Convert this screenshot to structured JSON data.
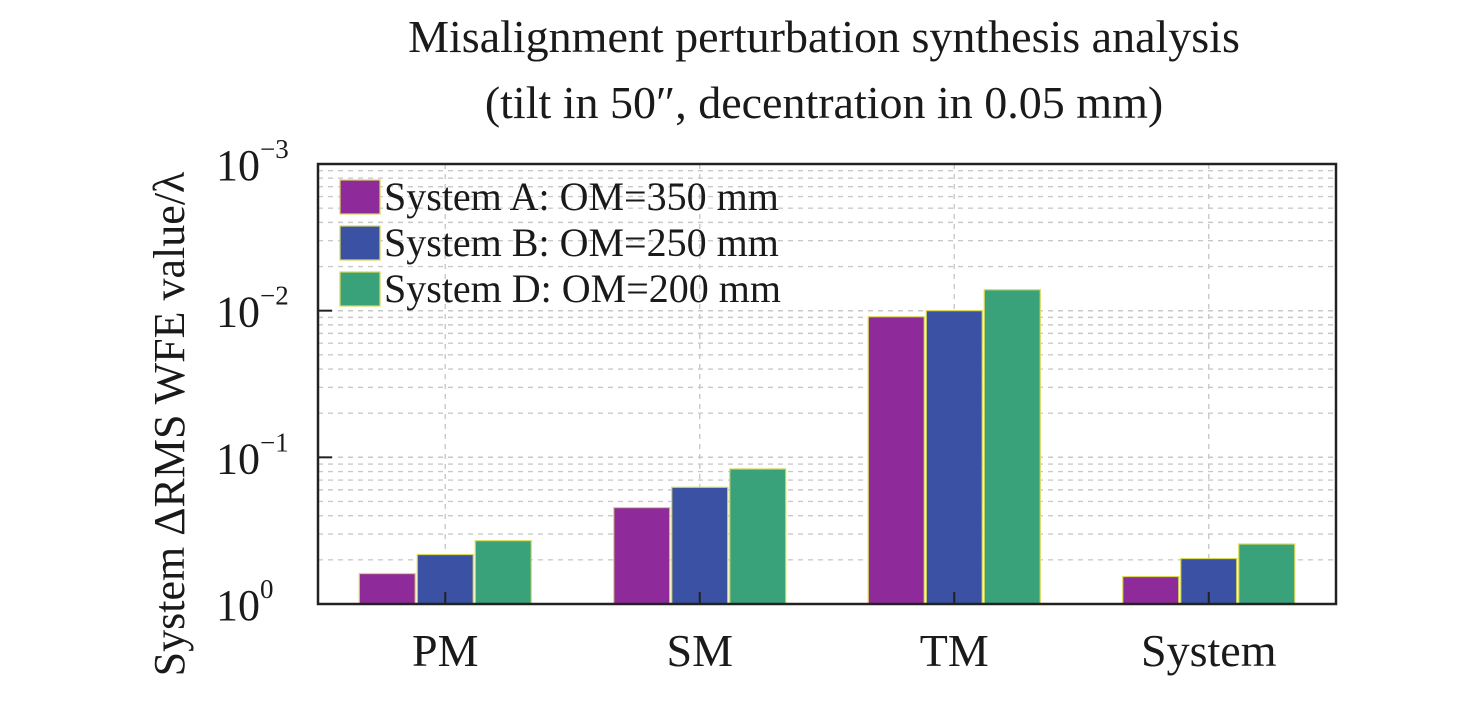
{
  "chart_data": {
    "type": "bar",
    "title_lines": [
      "Misalignment perturbation synthesis analysis",
      "(tilt in 50″, decentration in 0.05 mm)"
    ],
    "ylabel": "System ΔRMS WFE value/λ",
    "xlabel": "",
    "y_scale": "log",
    "y_ticks": [
      {
        "base": "10",
        "exp": "0"
      },
      {
        "base": "10",
        "exp": "−1"
      },
      {
        "base": "10",
        "exp": "−2"
      },
      {
        "base": "10",
        "exp": "−3"
      }
    ],
    "categories": [
      "PM",
      "SM",
      "TM",
      "System"
    ],
    "series": [
      {
        "name": "System A: OM=350 mm",
        "color": "#8e2a9a",
        "values": [
          0.62,
          0.22,
          0.011,
          0.65
        ]
      },
      {
        "name": "System B: OM=250 mm",
        "color": "#3b51a3",
        "values": [
          0.46,
          0.16,
          0.01,
          0.49
        ]
      },
      {
        "name": "System D: OM=200 mm",
        "color": "#3aa27a",
        "values": [
          0.37,
          0.12,
          0.0072,
          0.39
        ]
      }
    ],
    "grid": true,
    "legend_position": "top-left"
  }
}
